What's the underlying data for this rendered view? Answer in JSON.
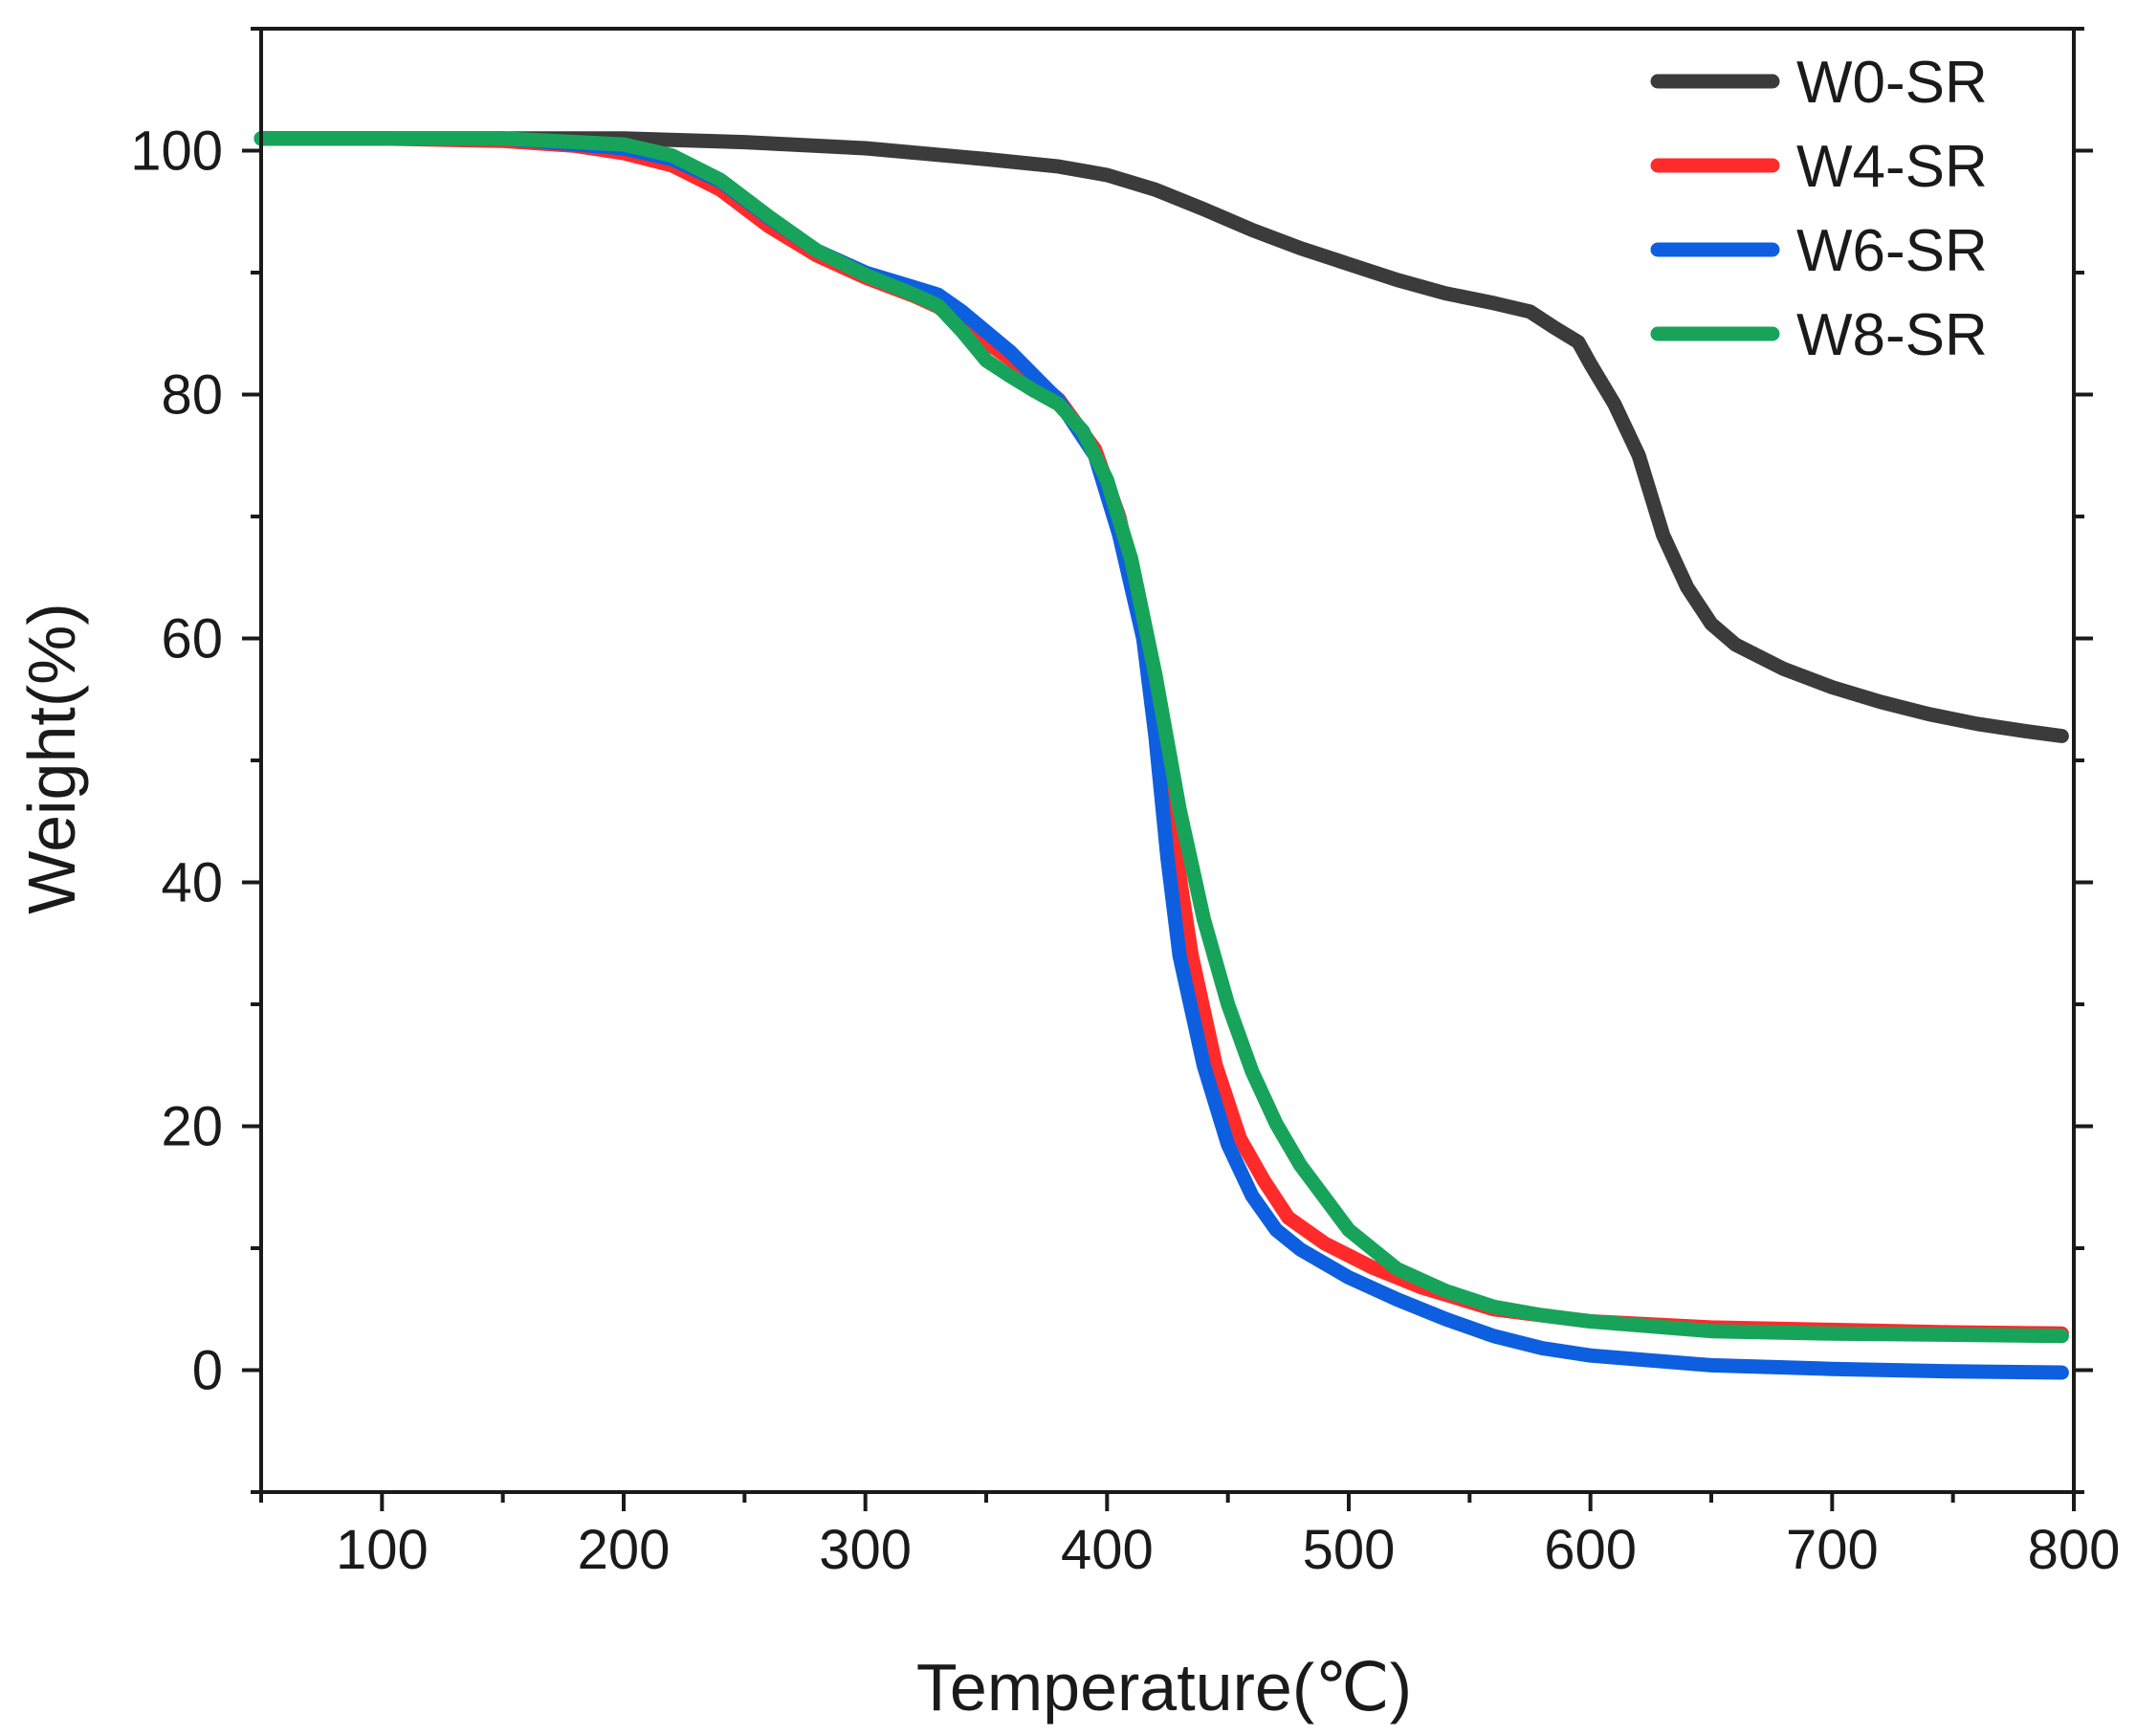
{
  "chart_data": {
    "type": "line",
    "title": "",
    "xlabel": "Temperature(℃)",
    "ylabel": "Weight(%)",
    "xlim": [
      50,
      800
    ],
    "ylim": [
      -10,
      110
    ],
    "xticks": [
      100,
      200,
      300,
      400,
      500,
      600,
      700,
      800
    ],
    "xtick_labels": [
      "100",
      "200",
      "300",
      "400",
      "500",
      "600",
      "700",
      "800"
    ],
    "yticks": [
      0,
      20,
      40,
      60,
      80,
      100
    ],
    "ytick_labels": [
      "0",
      "20",
      "40",
      "60",
      "80",
      "100"
    ],
    "grid": false,
    "legend_position": "top-right",
    "series": [
      {
        "name": "W0-SR",
        "color": "#3b3b3b",
        "x": [
          50,
          100,
          150,
          200,
          250,
          300,
          350,
          380,
          400,
          420,
          440,
          460,
          480,
          500,
          520,
          540,
          560,
          575,
          585,
          595,
          600,
          610,
          620,
          630,
          640,
          650,
          660,
          680,
          700,
          720,
          740,
          760,
          780,
          795
        ],
        "y": [
          101,
          101,
          101,
          101,
          100.7,
          100.2,
          99.3,
          98.7,
          98,
          96.8,
          95.2,
          93.5,
          92,
          90.7,
          89.4,
          88.3,
          87.5,
          86.8,
          85.5,
          84.3,
          82.5,
          79.2,
          75,
          68.5,
          64.2,
          61.2,
          59.5,
          57.5,
          56,
          54.8,
          53.8,
          53,
          52.4,
          52
        ]
      },
      {
        "name": "W4-SR",
        "color": "#ff2b2b",
        "x": [
          50,
          100,
          150,
          180,
          200,
          220,
          240,
          260,
          280,
          300,
          320,
          330,
          340,
          360,
          380,
          395,
          405,
          415,
          425,
          435,
          445,
          455,
          465,
          475,
          490,
          510,
          530,
          560,
          600,
          650,
          700,
          750,
          795
        ],
        "y": [
          101,
          101,
          100.8,
          100.4,
          99.8,
          98.8,
          96.8,
          93.8,
          91.4,
          89.6,
          88.1,
          87.2,
          85.7,
          82.9,
          79.6,
          75.5,
          70,
          61,
          47,
          34,
          25,
          19,
          15.5,
          12.5,
          10.4,
          8.4,
          6.8,
          5,
          4,
          3.5,
          3.3,
          3.1,
          3
        ]
      },
      {
        "name": "W6-SR",
        "color": "#0d5fe0",
        "x": [
          50,
          100,
          150,
          200,
          220,
          240,
          260,
          280,
          300,
          320,
          330,
          340,
          360,
          380,
          395,
          405,
          415,
          420,
          425,
          430,
          440,
          450,
          460,
          470,
          480,
          500,
          520,
          540,
          560,
          580,
          600,
          650,
          700,
          750,
          795
        ],
        "y": [
          101,
          101,
          101,
          100.2,
          99.3,
          97.5,
          94.5,
          91.8,
          90,
          88.8,
          88.2,
          86.8,
          83.5,
          79.5,
          75,
          68.5,
          60,
          52,
          42,
          34,
          25,
          18.5,
          14.3,
          11.5,
          9.9,
          7.6,
          5.8,
          4.2,
          2.8,
          1.8,
          1.2,
          0.4,
          0.1,
          -0.1,
          -0.2
        ]
      },
      {
        "name": "W8-SR",
        "color": "#17a45a",
        "x": [
          50,
          100,
          150,
          200,
          220,
          240,
          260,
          280,
          300,
          320,
          330,
          340,
          350,
          360,
          370,
          380,
          390,
          400,
          410,
          420,
          430,
          440,
          450,
          460,
          470,
          480,
          500,
          520,
          540,
          560,
          580,
          600,
          650,
          700,
          750,
          795
        ],
        "y": [
          101,
          101,
          101,
          100.5,
          99.6,
          97.6,
          94.6,
          91.8,
          89.8,
          88.2,
          87.3,
          85.2,
          82.8,
          81.5,
          80.3,
          79.2,
          77,
          73,
          66.5,
          57,
          46,
          37,
          30,
          24.5,
          20.2,
          16.8,
          11.5,
          8.3,
          6.5,
          5.2,
          4.5,
          4,
          3.2,
          3,
          2.9,
          2.8
        ]
      }
    ]
  }
}
